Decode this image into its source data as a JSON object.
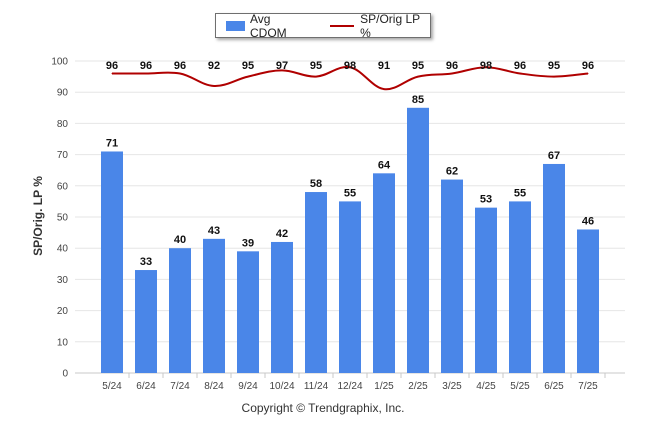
{
  "legend": {
    "bar_label": "Avg CDOM",
    "line_label": "SP/Orig LP %"
  },
  "copyright": "Copyright © Trendgraphix, Inc.",
  "chart_data": {
    "type": "bar",
    "categories": [
      "5/24",
      "6/24",
      "7/24",
      "8/24",
      "9/24",
      "10/24",
      "11/24",
      "12/24",
      "1/25",
      "2/25",
      "3/25",
      "4/25",
      "5/25",
      "6/25",
      "7/25"
    ],
    "series": [
      {
        "name": "Avg CDOM",
        "type": "bar",
        "color": "#4a86e8",
        "values": [
          71,
          33,
          40,
          43,
          39,
          42,
          58,
          55,
          64,
          85,
          62,
          53,
          55,
          67,
          46
        ]
      },
      {
        "name": "SP/Orig LP %",
        "type": "line",
        "color": "#b00000",
        "values": [
          96,
          96,
          96,
          92,
          95,
          97,
          95,
          98,
          91,
          95,
          96,
          98,
          96,
          95,
          96
        ]
      }
    ],
    "ylabel": "SP/Orig. LP %",
    "ylim": [
      0,
      100
    ],
    "yticks": [
      0,
      10,
      20,
      30,
      40,
      50,
      60,
      70,
      80,
      90,
      100
    ],
    "grid": true,
    "legend_position": "top-center"
  }
}
